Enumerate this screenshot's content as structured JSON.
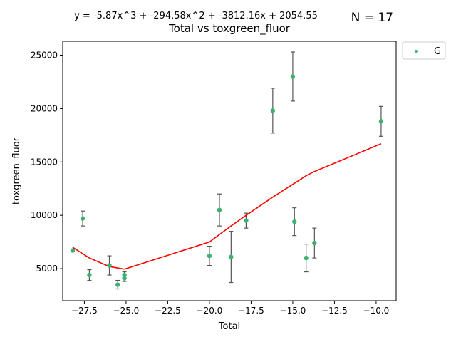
{
  "chart_data": {
    "type": "scatter",
    "title": "Total vs toxgreen_fluor",
    "equation": "y = -5.87x^3 + -294.58x^2 + -3812.16x + 2054.55",
    "n_label": "N = 17",
    "xlabel": "Total",
    "ylabel": "toxgreen_fluor",
    "xlim": [
      -28.8,
      -8.8
    ],
    "ylim": [
      2000,
      26300
    ],
    "x_ticks": [
      -27.5,
      -25.0,
      -22.5,
      -20.0,
      -17.5,
      -15.0,
      -12.5,
      -10.0
    ],
    "x_tick_labels": [
      "−27.5",
      "−25.0",
      "−22.5",
      "−20.0",
      "−17.5",
      "−15.0",
      "−12.5",
      "−10.0"
    ],
    "y_ticks": [
      5000,
      10000,
      15000,
      20000,
      25000
    ],
    "y_tick_labels": [
      "5000",
      "10000",
      "15000",
      "20000",
      "25000"
    ],
    "grid": false,
    "legend": {
      "placement": "outside-top-right",
      "entries": [
        "G"
      ]
    },
    "colors": {
      "points": "#3cb371",
      "fit": "#ff0000",
      "errorbars": "#555555"
    },
    "series": [
      {
        "name": "G",
        "points": [
          {
            "x": -28.2,
            "y": 6700,
            "err": 0
          },
          {
            "x": -27.6,
            "y": 9700,
            "err": 700
          },
          {
            "x": -27.2,
            "y": 4400,
            "err": 500
          },
          {
            "x": -26.0,
            "y": 5300,
            "err": 900
          },
          {
            "x": -25.5,
            "y": 3500,
            "err": 400
          },
          {
            "x": -25.1,
            "y": 4400,
            "err": 300
          },
          {
            "x": -25.1,
            "y": 4100,
            "err": 300
          },
          {
            "x": -20.0,
            "y": 6200,
            "err": 900
          },
          {
            "x": -19.4,
            "y": 10500,
            "err": 1500
          },
          {
            "x": -18.7,
            "y": 6100,
            "err": 2400
          },
          {
            "x": -17.8,
            "y": 9500,
            "err": 700
          },
          {
            "x": -16.2,
            "y": 19800,
            "err": 2100
          },
          {
            "x": -15.0,
            "y": 23000,
            "err": 2300
          },
          {
            "x": -14.9,
            "y": 9400,
            "err": 1300
          },
          {
            "x": -14.2,
            "y": 6000,
            "err": 1300
          },
          {
            "x": -13.7,
            "y": 7400,
            "err": 1400
          },
          {
            "x": -9.7,
            "y": 18800,
            "err": 1400
          }
        ]
      }
    ],
    "fit_line": {
      "x": [
        -28.2,
        -27.2,
        -26.0,
        -25.1,
        -20.0,
        -19.4,
        -18.7,
        -17.8,
        -16.2,
        -15.0,
        -14.9,
        -14.2,
        -13.7,
        -9.7
      ],
      "y": [
        7000,
        6000,
        5200,
        4950,
        7500,
        8200,
        9000,
        10000,
        11700,
        12900,
        13000,
        13700,
        14100,
        16700
      ]
    }
  }
}
